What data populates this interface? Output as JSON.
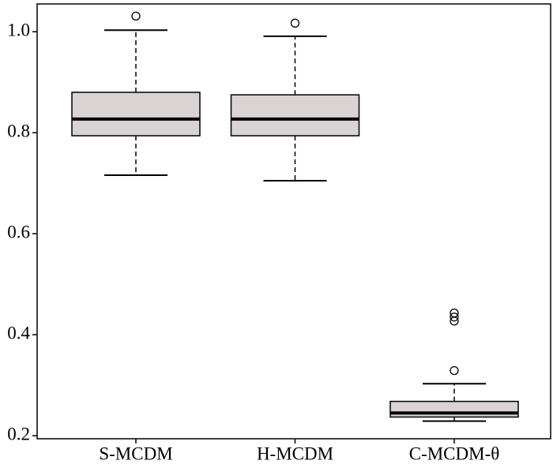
{
  "chart_data": {
    "type": "box",
    "categories": [
      "S-MCDM",
      "H-MCDM",
      "C-MCDM-θ"
    ],
    "boxes": [
      {
        "min": 0.716,
        "q1": 0.794,
        "median": 0.827,
        "q3": 0.88,
        "max": 1.003,
        "outliers": [
          1.031
        ]
      },
      {
        "min": 0.705,
        "q1": 0.794,
        "median": 0.827,
        "q3": 0.875,
        "max": 0.991,
        "outliers": [
          1.017
        ]
      },
      {
        "min": 0.229,
        "q1": 0.237,
        "median": 0.245,
        "q3": 0.268,
        "max": 0.303,
        "outliers": [
          0.443,
          0.435,
          0.427,
          0.329
        ]
      }
    ],
    "color": "#d9d3d3",
    "ylim": [
      0.194,
      1.055
    ],
    "yticks": [
      0.2,
      0.4,
      0.6,
      0.8,
      {
        "value": 1,
        "label": "1.0"
      }
    ]
  }
}
